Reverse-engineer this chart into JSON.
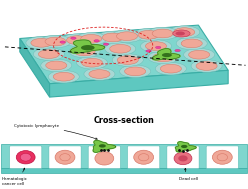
{
  "bg_color": "#ffffff",
  "teal_top": "#7fd6ce",
  "teal_side_left": "#4db8b0",
  "teal_side_bottom": "#5ec8c0",
  "well_shadow": "#a8d8d4",
  "cell_fill": "#f0a898",
  "cell_edge": "#d87868",
  "lymph_fill": "#78c848",
  "lymph_dark": "#2d6818",
  "dead_fill": "#e87080",
  "dead_dark": "#c03050",
  "pink_gran": "#f040a0",
  "title": "Cross-section",
  "label1": "Hematologic\ncancer cell",
  "label2": "Cytotoxic lymphocyte",
  "label3": "Dead cell"
}
